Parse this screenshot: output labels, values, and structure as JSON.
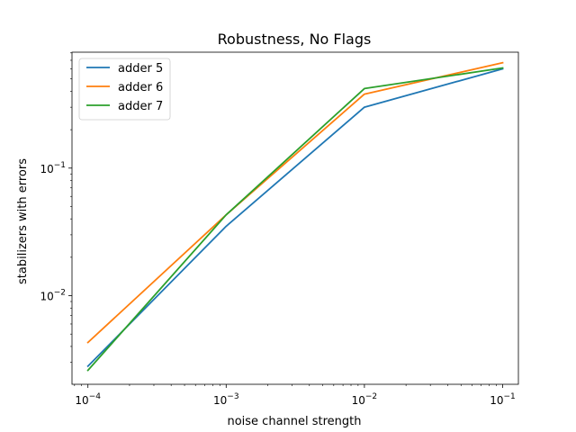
{
  "chart_data": {
    "type": "line",
    "title": "Robustness, No Flags",
    "xlabel": "noise channel strength",
    "ylabel": "stabilizers with errors",
    "xscale": "log",
    "yscale": "log",
    "xlim": [
      7.67e-05,
      0.13
    ],
    "ylim": [
      0.00202,
      0.81
    ],
    "x": [
      0.0001,
      0.001,
      0.01,
      0.1
    ],
    "xticks": [
      {
        "value": 0.0001,
        "base": "10",
        "exp": "−4"
      },
      {
        "value": 0.001,
        "base": "10",
        "exp": "−3"
      },
      {
        "value": 0.01,
        "base": "10",
        "exp": "−2"
      },
      {
        "value": 0.1,
        "base": "10",
        "exp": "−1"
      }
    ],
    "yticks": [
      {
        "value": 0.01,
        "base": "10",
        "exp": "−2"
      },
      {
        "value": 0.1,
        "base": "10",
        "exp": "−1"
      }
    ],
    "grid": false,
    "legend_position": "top-left",
    "series": [
      {
        "name": "adder 5",
        "color": "#1f77b4",
        "values": [
          0.0028,
          0.035,
          0.3,
          0.6
        ]
      },
      {
        "name": "adder 6",
        "color": "#ff7f0e",
        "values": [
          0.0043,
          0.043,
          0.38,
          0.67
        ]
      },
      {
        "name": "adder 7",
        "color": "#2ca02c",
        "values": [
          0.0026,
          0.043,
          0.42,
          0.61
        ]
      }
    ]
  }
}
